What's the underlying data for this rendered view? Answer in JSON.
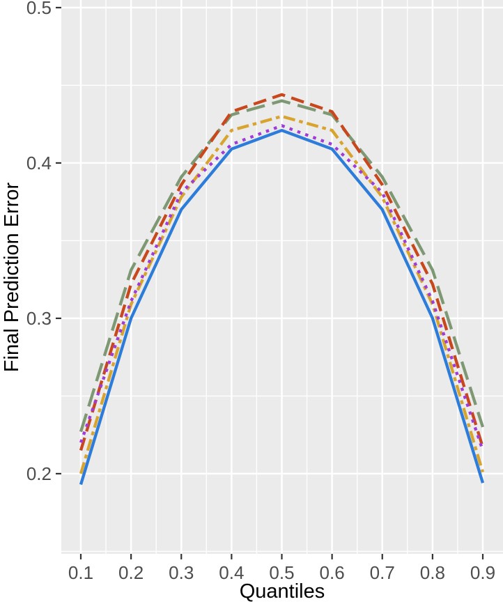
{
  "chart_data": {
    "type": "line",
    "title": "",
    "xlabel": "Quantiles",
    "ylabel": "Final Prediction Error",
    "x": [
      0.1,
      0.2,
      0.3,
      0.4,
      0.5,
      0.6,
      0.7,
      0.8,
      0.9
    ],
    "series": [
      {
        "name": "green-longdash",
        "color": "#7E9873",
        "linetype": "longdash",
        "values": [
          0.227,
          0.331,
          0.391,
          0.431,
          0.44,
          0.431,
          0.391,
          0.331,
          0.23
        ]
      },
      {
        "name": "red-dashed",
        "color": "#C8481E",
        "linetype": "dashed",
        "values": [
          0.215,
          0.322,
          0.386,
          0.433,
          0.444,
          0.433,
          0.386,
          0.322,
          0.217
        ]
      },
      {
        "name": "gold-twodash",
        "color": "#D8A430",
        "linetype": "twodash",
        "values": [
          0.2,
          0.309,
          0.378,
          0.421,
          0.43,
          0.421,
          0.378,
          0.309,
          0.201
        ]
      },
      {
        "name": "purple-dotted",
        "color": "#A03BD8",
        "linetype": "dotted",
        "values": [
          0.22,
          0.311,
          0.381,
          0.412,
          0.424,
          0.412,
          0.381,
          0.311,
          0.215
        ]
      },
      {
        "name": "blue-solid",
        "color": "#2E7CD9",
        "linetype": "solid",
        "values": [
          0.193,
          0.3,
          0.37,
          0.409,
          0.421,
          0.409,
          0.37,
          0.3,
          0.194
        ]
      }
    ],
    "x_ticks": [
      "0.1",
      "0.2",
      "0.3",
      "0.4",
      "0.5",
      "0.6",
      "0.7",
      "0.8",
      "0.9"
    ],
    "y_ticks": [
      "0.2",
      "0.3",
      "0.4",
      "0.5"
    ],
    "x_minor": [
      0.15,
      0.25,
      0.35,
      0.45,
      0.55,
      0.65,
      0.75,
      0.85
    ],
    "y_minor": [
      0.15,
      0.25,
      0.35,
      0.45
    ],
    "xlim": [
      0.0612,
      0.9402
    ],
    "ylim": [
      0.1484,
      0.5049
    ],
    "grid": true,
    "legend": "none",
    "colors": {
      "background": "#FFFFFF",
      "panel_bg": "#EBEBEB",
      "grid": "#FFFFFF",
      "tick_label": "#4D4D4D",
      "tick_mark": "#333333",
      "axis_title": "#000000"
    }
  }
}
